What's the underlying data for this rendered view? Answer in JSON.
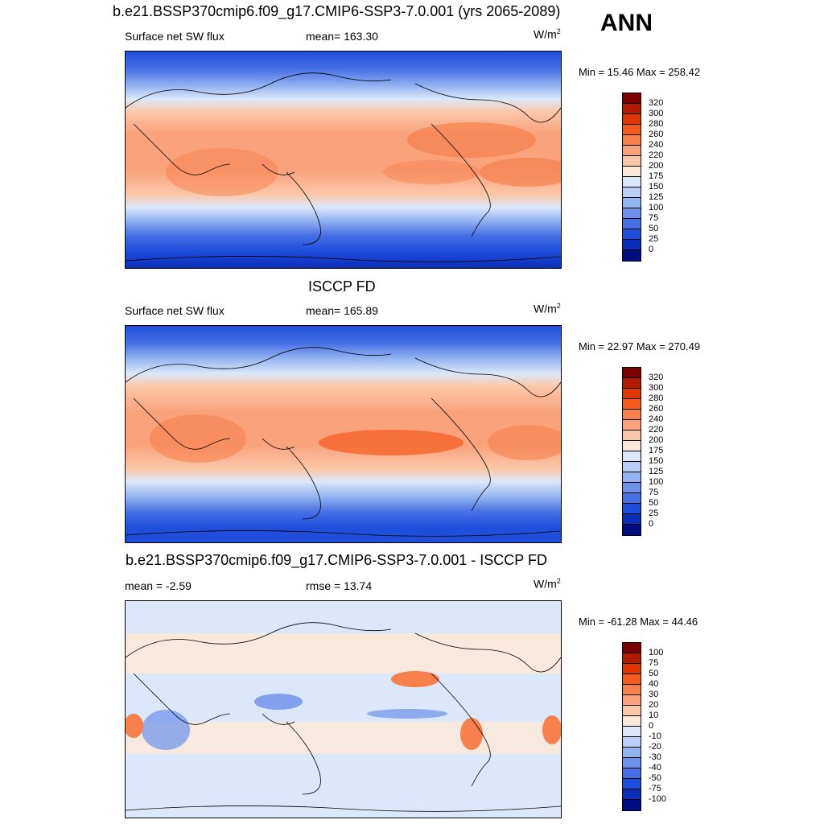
{
  "season": "ANN",
  "units": "W/m",
  "units_sup": "2",
  "panels": [
    {
      "title": "b.e21.BSSP370cmip6.f09_g17.CMIP6-SSP3-7.0.001 (yrs 2065-2089)",
      "left_label": "Surface net SW flux",
      "center_label": "mean= 163.30",
      "minmax": "Min =  15.46 Max = 258.42",
      "colorbar_labels": [
        "320",
        "300",
        "280",
        "260",
        "240",
        "220",
        "200",
        "175",
        "150",
        "125",
        "100",
        "75",
        "50",
        "25",
        "0"
      ]
    },
    {
      "title": "ISCCP FD",
      "left_label": "Surface net SW flux",
      "center_label": "mean= 165.89",
      "minmax": "Min =  22.97 Max = 270.49",
      "colorbar_labels": [
        "320",
        "300",
        "280",
        "260",
        "240",
        "220",
        "200",
        "175",
        "150",
        "125",
        "100",
        "75",
        "50",
        "25",
        "0"
      ]
    },
    {
      "title": "b.e21.BSSP370cmip6.f09_g17.CMIP6-SSP3-7.0.001 - ISCCP FD",
      "left_label": "mean =  -2.59",
      "center_label": "rmse =  13.74",
      "minmax": "Min = -61.28 Max =  44.46",
      "colorbar_labels": [
        "100",
        "75",
        "50",
        "40",
        "30",
        "20",
        "10",
        "0",
        "-10",
        "-20",
        "-30",
        "-40",
        "-50",
        "-75",
        "-100"
      ]
    }
  ],
  "colors": {
    "abs_scale": [
      "#7a0000",
      "#b31b00",
      "#e03500",
      "#f55a1e",
      "#f7804d",
      "#f9a27c",
      "#fcc7a8",
      "#fde8d9",
      "#dbe8fb",
      "#b9cff7",
      "#94b3f1",
      "#6d92eb",
      "#4670e4",
      "#1f4edc",
      "#0a2eb9",
      "#000d80"
    ],
    "diff_scale": [
      "#7a0000",
      "#b31b00",
      "#e03500",
      "#f55a1e",
      "#f7804d",
      "#f9a27c",
      "#fcc7a8",
      "#fde8d9",
      "#dbe8fb",
      "#b9cff7",
      "#94b3f1",
      "#6d92eb",
      "#4670e4",
      "#1f4edc",
      "#0a2eb9",
      "#000d80"
    ],
    "coast": "#000000"
  }
}
